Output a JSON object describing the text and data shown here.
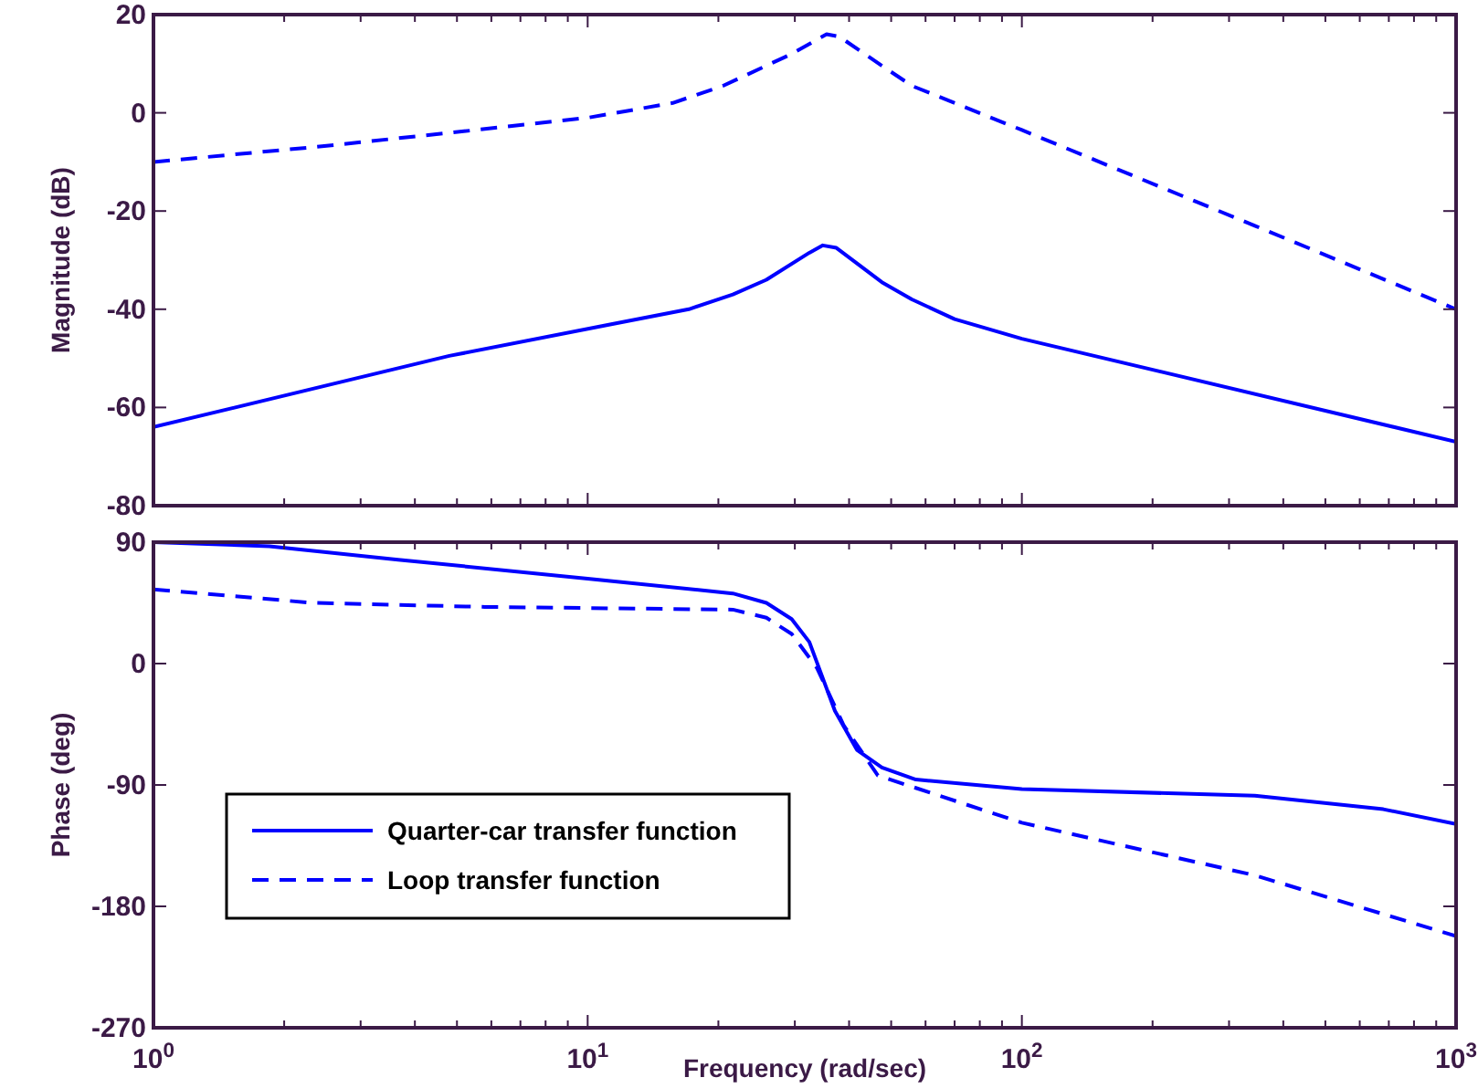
{
  "chart_data": [
    {
      "type": "line",
      "ylabel": "Magnitude (dB)",
      "log": "x",
      "xlim": [
        1,
        1000
      ],
      "ylim": [
        -80,
        20
      ],
      "yticks": [
        -80,
        -60,
        -40,
        -20,
        0,
        20
      ],
      "xticks": [
        {
          "value": 1,
          "label": null
        },
        {
          "value": 2,
          "label": null
        },
        {
          "value": 3,
          "label": null
        },
        {
          "value": 4,
          "label": null
        },
        {
          "value": 5,
          "label": null
        },
        {
          "value": 6,
          "label": null
        },
        {
          "value": 7,
          "label": null
        },
        {
          "value": 8,
          "label": null
        },
        {
          "value": 9,
          "label": null
        },
        {
          "value": 10,
          "label": null
        },
        {
          "value": 20,
          "label": null
        },
        {
          "value": 30,
          "label": null
        },
        {
          "value": 40,
          "label": null
        },
        {
          "value": 50,
          "label": null
        },
        {
          "value": 60,
          "label": null
        },
        {
          "value": 70,
          "label": null
        },
        {
          "value": 80,
          "label": null
        },
        {
          "value": 90,
          "label": null
        },
        {
          "value": 100,
          "label": null
        },
        {
          "value": 200,
          "label": null
        },
        {
          "value": 300,
          "label": null
        },
        {
          "value": 400,
          "label": null
        },
        {
          "value": 500,
          "label": null
        },
        {
          "value": 600,
          "label": null
        },
        {
          "value": 700,
          "label": null
        },
        {
          "value": 800,
          "label": null
        },
        {
          "value": 900,
          "label": null
        },
        {
          "value": 1000,
          "label": null
        }
      ],
      "tick_labels": "y",
      "grid": false,
      "legend": false,
      "series": [
        {
          "color": "#0000ff",
          "line_style": "solid",
          "x": [
            1,
            4.8,
            11.4,
            17.1,
            21.6,
            25.8,
            32.4,
            34.8,
            37.4,
            47.6,
            55.8,
            70,
            100,
            1000
          ],
          "values": [
            -64,
            -49.5,
            -43,
            -40,
            -37,
            -34,
            -28.5,
            -27,
            -27.5,
            -34.5,
            -38,
            -42,
            -46,
            -67
          ]
        },
        {
          "color": "#0000ff",
          "line_style": "dashed",
          "x": [
            1,
            2.33,
            4.9,
            10,
            15.7,
            20.5,
            29.5,
            35.5,
            38,
            48.7,
            55.8,
            100,
            344,
            1000
          ],
          "values": [
            -10,
            -7,
            -4,
            -1,
            2,
            5.5,
            12,
            16,
            15.5,
            9,
            5.5,
            -3.5,
            -23,
            -40
          ]
        }
      ]
    },
    {
      "type": "line",
      "ylabel": "Phase (deg)",
      "xlabel": "Frequency  (rad/sec)",
      "log": "x",
      "xlim": [
        1,
        1000
      ],
      "ylim": [
        -270,
        90
      ],
      "yticks": [
        -270,
        -180,
        -90,
        0,
        90
      ],
      "xticks": [
        {
          "value": 1,
          "label": "10$^{0}$"
        },
        {
          "value": 2,
          "label": null
        },
        {
          "value": 3,
          "label": null
        },
        {
          "value": 4,
          "label": null
        },
        {
          "value": 5,
          "label": null
        },
        {
          "value": 6,
          "label": null
        },
        {
          "value": 7,
          "label": null
        },
        {
          "value": 8,
          "label": null
        },
        {
          "value": 9,
          "label": null
        },
        {
          "value": 10,
          "label": "10$^{1}$"
        },
        {
          "value": 20,
          "label": null
        },
        {
          "value": 30,
          "label": null
        },
        {
          "value": 40,
          "label": null
        },
        {
          "value": 50,
          "label": null
        },
        {
          "value": 60,
          "label": null
        },
        {
          "value": 70,
          "label": null
        },
        {
          "value": 80,
          "label": null
        },
        {
          "value": 90,
          "label": null
        },
        {
          "value": 100,
          "label": "10$^{2}$"
        },
        {
          "value": 200,
          "label": null
        },
        {
          "value": 300,
          "label": null
        },
        {
          "value": 400,
          "label": null
        },
        {
          "value": 500,
          "label": null
        },
        {
          "value": 600,
          "label": null
        },
        {
          "value": 700,
          "label": null
        },
        {
          "value": 800,
          "label": null
        },
        {
          "value": 900,
          "label": null
        },
        {
          "value": 1000,
          "label": "10$^{3}$"
        }
      ],
      "grid": false,
      "legend": "bottom left",
      "series": [
        {
          "name": "Quarter-car transfer function",
          "color": "#0000ff",
          "line_style": "solid",
          "x": [
            1,
            1.85,
            3.66,
            10,
            21.6,
            25.8,
            29.5,
            32.4,
            37.1,
            41.7,
            47.6,
            57,
            100,
            344,
            680,
            1000
          ],
          "values": [
            90,
            87,
            77,
            63,
            52,
            45,
            33,
            16,
            -35,
            -64,
            -77,
            -86,
            -93,
            -98,
            -108,
            -119
          ]
        },
        {
          "name": "Loop transfer function",
          "color": "#0000ff",
          "line_style": "dashed",
          "x": [
            1,
            2.33,
            5.8,
            21.6,
            25.8,
            29.5,
            33.7,
            38.9,
            46.6,
            100,
            344,
            1000
          ],
          "values": [
            55,
            45,
            42,
            40,
            34,
            22,
            -3,
            -46,
            -83,
            -118,
            -157,
            -202
          ]
        }
      ]
    }
  ]
}
